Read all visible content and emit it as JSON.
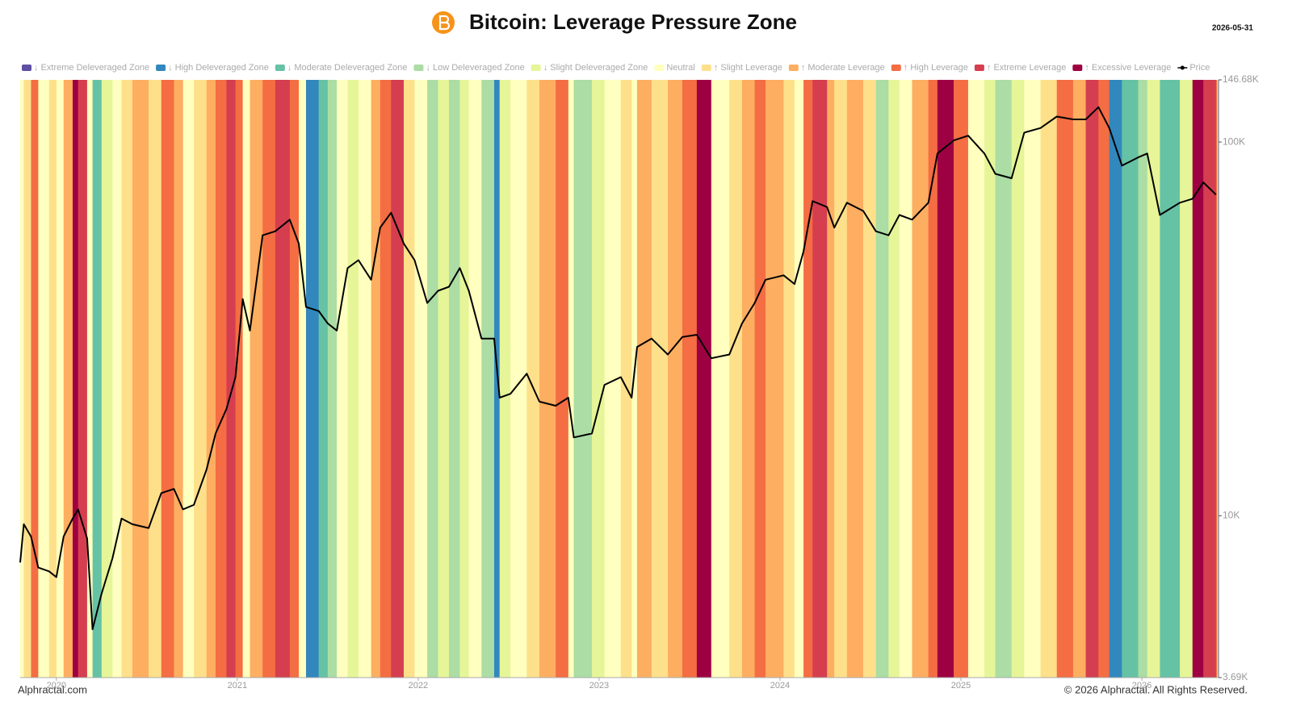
{
  "chart_data": {
    "type": "line",
    "title": "Bitcoin: Leverage Pressure Zone",
    "date": "2026-05-31",
    "source": "Alphractal.com",
    "copyright": "© 2026 Alphractal. All Rights Reserved.",
    "log_y": true,
    "legend": "top",
    "zones": [
      {
        "name": "↓ Extreme Deleveraged Zone",
        "color": "#5e4fa2"
      },
      {
        "name": "↓ High Deleveraged Zone",
        "color": "#3288bd"
      },
      {
        "name": "↓ Moderate Deleveraged Zone",
        "color": "#66c2a5"
      },
      {
        "name": "↓ Low Deleveraged Zone",
        "color": "#abdda4"
      },
      {
        "name": "↓ Slight Deleveraged Zone",
        "color": "#e6f598"
      },
      {
        "name": "Neutral",
        "color": "#ffffbf"
      },
      {
        "name": "↑ Slight Leverage",
        "color": "#fee08b"
      },
      {
        "name": "↑ Moderate Leverage",
        "color": "#fdae61"
      },
      {
        "name": "↑ High Leverage",
        "color": "#f46d43"
      },
      {
        "name": "↑ Extreme Leverage",
        "color": "#d53e4f"
      },
      {
        "name": "↑ Excessive Leverage",
        "color": "#9e0142"
      }
    ],
    "x": [
      2019.8,
      2019.82,
      2019.86,
      2019.9,
      2019.96,
      2020.0,
      2020.04,
      2020.09,
      2020.12,
      2020.17,
      2020.2,
      2020.25,
      2020.31,
      2020.36,
      2020.42,
      2020.51,
      2020.58,
      2020.65,
      2020.7,
      2020.76,
      2020.83,
      2020.88,
      2020.94,
      2020.99,
      2021.03,
      2021.07,
      2021.14,
      2021.21,
      2021.29,
      2021.34,
      2021.38,
      2021.45,
      2021.5,
      2021.55,
      2021.61,
      2021.67,
      2021.74,
      2021.79,
      2021.85,
      2021.92,
      2021.98,
      2022.05,
      2022.11,
      2022.17,
      2022.23,
      2022.28,
      2022.35,
      2022.42,
      2022.45,
      2022.51,
      2022.6,
      2022.67,
      2022.76,
      2022.83,
      2022.86,
      2022.96,
      2023.03,
      2023.12,
      2023.18,
      2023.21,
      2023.29,
      2023.38,
      2023.46,
      2023.54,
      2023.62,
      2023.72,
      2023.79,
      2023.86,
      2023.92,
      2024.02,
      2024.08,
      2024.13,
      2024.18,
      2024.26,
      2024.3,
      2024.37,
      2024.46,
      2024.53,
      2024.6,
      2024.66,
      2024.73,
      2024.82,
      2024.87,
      2024.96,
      2025.04,
      2025.13,
      2025.19,
      2025.28,
      2025.35,
      2025.44,
      2025.53,
      2025.62,
      2025.69,
      2025.76,
      2025.82,
      2025.89,
      2025.98,
      2026.03,
      2026.1,
      2026.21,
      2026.28,
      2026.34,
      2026.41
    ],
    "series": [
      {
        "name": "Price",
        "color": "#000000",
        "values": [
          7500,
          9490,
          8800,
          7270,
          7100,
          6850,
          8800,
          9830,
          10400,
          8700,
          4970,
          6190,
          7700,
          9830,
          9490,
          9270,
          11500,
          11800,
          10400,
          10700,
          13300,
          16600,
          19300,
          23500,
          38000,
          31300,
          56300,
          57700,
          62000,
          53500,
          36200,
          35300,
          32700,
          31300,
          46000,
          48300,
          42800,
          59000,
          64700,
          53500,
          48300,
          37100,
          40000,
          41000,
          46000,
          40000,
          29800,
          29800,
          20700,
          21200,
          24000,
          20200,
          19700,
          20700,
          16200,
          16600,
          22400,
          23500,
          20700,
          28300,
          29800,
          27000,
          30100,
          30500,
          26400,
          27000,
          32700,
          37100,
          42800,
          44000,
          41700,
          51000,
          69500,
          67000,
          59000,
          68800,
          65400,
          57700,
          56300,
          63800,
          62000,
          68800,
          93200,
          101000,
          104000,
          93200,
          82200,
          80000,
          106000,
          109000,
          117000,
          115000,
          115000,
          124000,
          109000,
          86500,
          91000,
          93200,
          63800,
          68800,
          70500,
          78000,
          72300
        ],
        "zone": [
          "Neutral",
          "↑ Slight Leverage",
          "↑ High Leverage",
          "Neutral",
          "↑ Slight Leverage",
          "Neutral",
          "↑ Moderate Leverage",
          "↑ Excessive Leverage",
          "↑ Extreme Leverage",
          "Neutral",
          "↓ Moderate Deleveraged Zone",
          "↓ Slight Deleveraged Zone",
          "Neutral",
          "↑ Slight Leverage",
          "↑ Moderate Leverage",
          "↑ Slight Leverage",
          "↑ High Leverage",
          "↑ Moderate Leverage",
          "Neutral",
          "↑ Slight Leverage",
          "↑ Moderate Leverage",
          "↑ High Leverage",
          "↑ Extreme Leverage",
          "↑ High Leverage",
          "Neutral",
          "↑ Moderate Leverage",
          "↑ High Leverage",
          "↑ Extreme Leverage",
          "↑ High Leverage",
          "Neutral",
          "↓ High Deleveraged Zone",
          "↓ Moderate Deleveraged Zone",
          "↓ Low Deleveraged Zone",
          "Neutral",
          "↓ Slight Deleveraged Zone",
          "Neutral",
          "↑ Moderate Leverage",
          "↑ High Leverage",
          "↑ Extreme Leverage",
          "↑ Slight Leverage",
          "Neutral",
          "↓ Low Deleveraged Zone",
          "↓ Slight Deleveraged Zone",
          "↓ Low Deleveraged Zone",
          "↓ Slight Deleveraged Zone",
          "Neutral",
          "↓ Low Deleveraged Zone",
          "↓ High Deleveraged Zone",
          "↓ Slight Deleveraged Zone",
          "Neutral",
          "↑ Slight Leverage",
          "↑ Moderate Leverage",
          "↑ High Leverage",
          "Neutral",
          "↓ Low Deleveraged Zone",
          "↓ Slight Deleveraged Zone",
          "Neutral",
          "↑ Slight Leverage",
          "Neutral",
          "↑ Moderate Leverage",
          "↑ Slight Leverage",
          "↑ Moderate Leverage",
          "↑ High Leverage",
          "↑ Excessive Leverage",
          "Neutral",
          "↑ Slight Leverage",
          "↑ Moderate Leverage",
          "↑ High Leverage",
          "↑ Moderate Leverage",
          "↑ Slight Leverage",
          "Neutral",
          "↑ High Leverage",
          "↑ Extreme Leverage",
          "↑ Moderate Leverage",
          "↑ Slight Leverage",
          "↑ Moderate Leverage",
          "↑ Slight Leverage",
          "↓ Low Deleveraged Zone",
          "↓ Slight Deleveraged Zone",
          "Neutral",
          "↑ Moderate Leverage",
          "↑ High Leverage",
          "↑ Excessive Leverage",
          "↑ High Leverage",
          "Neutral",
          "↓ Slight Deleveraged Zone",
          "↓ Low Deleveraged Zone",
          "↓ Slight Deleveraged Zone",
          "Neutral",
          "↑ Slight Leverage",
          "↑ High Leverage",
          "↑ Moderate Leverage",
          "↑ Extreme Leverage",
          "↑ High Leverage",
          "↓ High Deleveraged Zone",
          "↓ Moderate Deleveraged Zone",
          "↓ Low Deleveraged Zone",
          "↓ Slight Deleveraged Zone",
          "↓ Moderate Deleveraged Zone",
          "↓ Slight Deleveraged Zone",
          "↑ Excessive Leverage",
          "↑ Extreme Leverage",
          "↑ High Leverage"
        ]
      }
    ],
    "xlim": [
      2019.8,
      2026.415
    ],
    "xticks": [
      2020,
      2021,
      2022,
      2023,
      2024,
      2025,
      2026
    ],
    "ylim": [
      3690,
      146680
    ],
    "yticks": [
      {
        "value": 3690,
        "label": "3.69K"
      },
      {
        "value": 10000,
        "label": "10K"
      },
      {
        "value": 100000,
        "label": "100K"
      },
      {
        "value": 146680,
        "label": "146.68K"
      }
    ]
  }
}
